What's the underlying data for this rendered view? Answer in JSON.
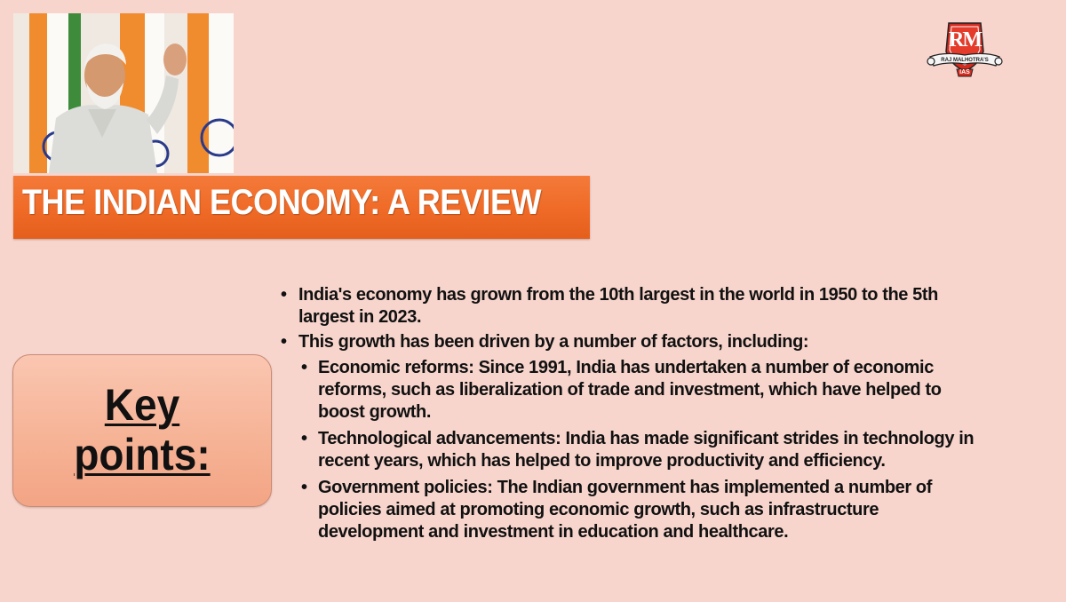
{
  "slide": {
    "title": "THE INDIAN ECONOMY: A REVIEW",
    "key_label_line1": "Key",
    "key_label_line2": "points:"
  },
  "logo": {
    "monogram": "RM",
    "banner_text": "RAJ MALHOTRA'S",
    "sub_text": "IAS"
  },
  "bullets": [
    {
      "text": "India's economy has grown from the 10th largest in the world in 1950 to the 5th largest in 2023."
    },
    {
      "text": "This growth has been driven by a number of factors, including:",
      "sub": [
        "Economic reforms: Since 1991, India has undertaken a number of economic reforms, such as liberalization of trade and investment, which have helped to boost growth.",
        "Technological advancements: India has made significant strides in technology in recent years, which has helped to improve productivity and efficiency.",
        "Government policies: The Indian government has implemented a number of policies aimed at promoting economic growth, such as infrastructure development and investment in education and healthcare."
      ]
    }
  ],
  "colors": {
    "background": "#f8d5cc",
    "title_bar": "#ef6a26",
    "key_box": "#f6b396",
    "logo_red": "#d52a1e"
  }
}
